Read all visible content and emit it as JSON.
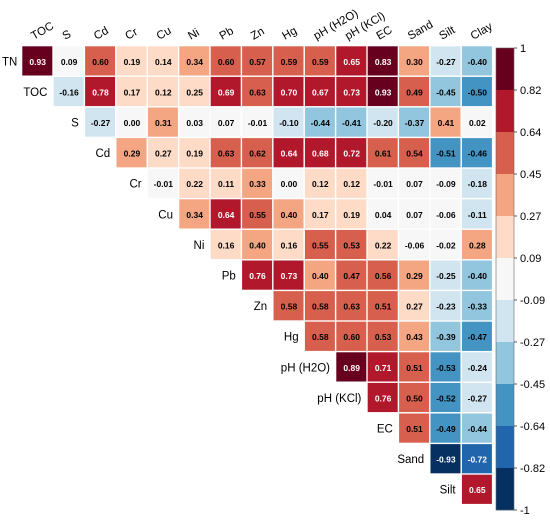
{
  "chart_data": {
    "type": "heatmap",
    "title": "",
    "variables": [
      "TN",
      "TOC",
      "S",
      "Cd",
      "Cr",
      "Cu",
      "Ni",
      "Pb",
      "Zn",
      "Hg",
      "pH (H2O)",
      "pH (KCl)",
      "EC",
      "Sand",
      "Silt",
      "Clay"
    ],
    "column_labels": [
      "TOC",
      "S",
      "Cd",
      "Cr",
      "Cu",
      "Ni",
      "Pb",
      "Zn",
      "Hg",
      "pH (H2O)",
      "pH (KCl)",
      "EC",
      "Sand",
      "Silt",
      "Clay"
    ],
    "row_labels": [
      "TN",
      "TOC",
      "S",
      "Cd",
      "Cr",
      "Cu",
      "Ni",
      "Pb",
      "Zn",
      "Hg",
      "pH (H2O)",
      "pH (KCl)",
      "EC",
      "Sand",
      "Silt"
    ],
    "matrix_upper_triangle": [
      [
        "0.93",
        "0.09",
        "0.60",
        "0.19",
        "0.14",
        "0.34",
        "0.60",
        "0.57",
        "0.59",
        "0.59",
        "0.65",
        "0.83",
        "0.30",
        "-0.27",
        "-0.40"
      ],
      [
        "-0.16",
        "0.78",
        "0.17",
        "0.12",
        "0.25",
        "0.69",
        "0.63",
        "0.70",
        "0.67",
        "0.73",
        "0.93",
        "0.49",
        "-0.45",
        "-0.50"
      ],
      [
        "-0.27",
        "0.00",
        "0.31",
        "0.03",
        "0.07",
        "-0.01",
        "-0.10",
        "-0.44",
        "-0.41",
        "-0.20",
        "-0.37",
        "0.41",
        "0.02"
      ],
      [
        "0.29",
        "0.27",
        "0.19",
        "0.63",
        "0.62",
        "0.64",
        "0.68",
        "0.72",
        "0.61",
        "0.54",
        "-0.51",
        "-0.46"
      ],
      [
        "-0.01",
        "0.22",
        "0.11",
        "0.33",
        "0.00",
        "0.12",
        "0.12",
        "-0.01",
        "0.07",
        "-0.09",
        "-0.18"
      ],
      [
        "0.34",
        "0.64",
        "0.55",
        "0.40",
        "0.17",
        "0.19",
        "0.04",
        "0.07",
        "-0.06",
        "-0.11"
      ],
      [
        "0.16",
        "0.40",
        "0.16",
        "0.55",
        "0.53",
        "0.22",
        "-0.06",
        "-0.02",
        "0.28"
      ],
      [
        "0.76",
        "0.73",
        "0.40",
        "0.47",
        "0.56",
        "0.29",
        "-0.25",
        "-0.40"
      ],
      [
        "0.58",
        "0.58",
        "0.63",
        "0.51",
        "0.27",
        "-0.23",
        "-0.33"
      ],
      [
        "0.58",
        "0.60",
        "0.53",
        "0.43",
        "-0.39",
        "-0.47"
      ],
      [
        "0.89",
        "0.71",
        "0.51",
        "-0.53",
        "-0.24"
      ],
      [
        "0.76",
        "0.50",
        "-0.52",
        "-0.27"
      ],
      [
        "0.51",
        "-0.49",
        "-0.44"
      ],
      [
        "-0.93",
        "-0.72"
      ],
      [
        "0.65"
      ]
    ],
    "value_range": [
      -1,
      1
    ],
    "legend": {
      "position": "right",
      "tick_labels": [
        "1",
        "0.82",
        "0.64",
        "0.45",
        "0.27",
        "0.09",
        "-0.09",
        "-0.27",
        "-0.45",
        "-0.64",
        "-0.82",
        "-1"
      ],
      "colors": [
        "#67001f",
        "#b2182b",
        "#d6604d",
        "#f4a582",
        "#fddbc7",
        "#f7f7f7",
        "#d1e5f0",
        "#92c5de",
        "#4393c3",
        "#2166ac",
        "#053061"
      ]
    },
    "grid": false
  }
}
